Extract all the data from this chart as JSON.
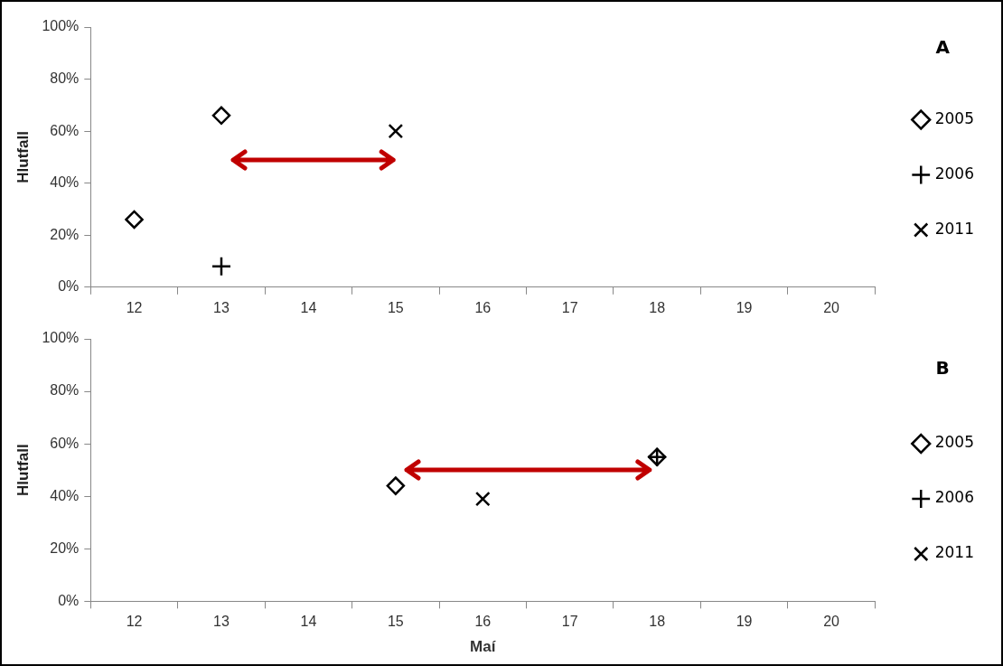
{
  "chart_data": [
    {
      "type": "scatter",
      "annotations": [
        "A"
      ],
      "ylabel": "Hlutfall",
      "categories": [
        "12",
        "13",
        "14",
        "15",
        "16",
        "17",
        "18",
        "19",
        "20"
      ],
      "ylim": [
        0,
        100
      ],
      "yticks": [
        {
          "value": 0,
          "label": "0%"
        },
        {
          "value": 20,
          "label": "20%"
        },
        {
          "value": 40,
          "label": "40%"
        },
        {
          "value": 60,
          "label": "60%"
        },
        {
          "value": 80,
          "label": "80%"
        },
        {
          "value": 100,
          "label": "100%"
        }
      ],
      "legend": "right",
      "grid": false,
      "series": [
        {
          "name": "2005",
          "color": "#000000",
          "marker": "diamond",
          "values": [
            26,
            66,
            null,
            null,
            null,
            null,
            null,
            null,
            null
          ]
        },
        {
          "name": "2006",
          "color": "#000000",
          "marker": "cross",
          "values": [
            null,
            8,
            null,
            null,
            null,
            null,
            null,
            null,
            null
          ]
        },
        {
          "name": "2011",
          "color": "#000000",
          "values": [
            null,
            null,
            null,
            60,
            null,
            null,
            null,
            null,
            null
          ]
        }
      ]
    },
    {
      "type": "scatter",
      "annotations": [
        "B"
      ],
      "ylabel": "Hlutfall",
      "xlabel": "Maí",
      "categories": [
        "12",
        "13",
        "14",
        "15",
        "16",
        "17",
        "18",
        "19",
        "20"
      ],
      "ylim": [
        0,
        100
      ],
      "yticks": [
        {
          "value": 0,
          "label": "0%"
        },
        {
          "value": 20,
          "label": "20%"
        },
        {
          "value": 40,
          "label": "40%"
        },
        {
          "value": 60,
          "label": "60%"
        },
        {
          "value": 80,
          "label": "80%"
        },
        {
          "value": 100,
          "label": "100%"
        }
      ],
      "legend": "right",
      "grid": false,
      "series": [
        {
          "name": "2005",
          "color": "#000000",
          "marker": "diamond",
          "values": [
            null,
            null,
            null,
            44,
            null,
            null,
            55,
            null,
            null
          ]
        },
        {
          "name": "2006",
          "color": "#000000",
          "values": [
            null,
            null,
            null,
            null,
            null,
            null,
            55,
            null,
            null
          ]
        },
        {
          "name": "2011",
          "color": "#000000",
          "values": [
            null,
            null,
            null,
            null,
            39,
            null,
            null,
            null,
            null
          ]
        }
      ]
    }
  ]
}
